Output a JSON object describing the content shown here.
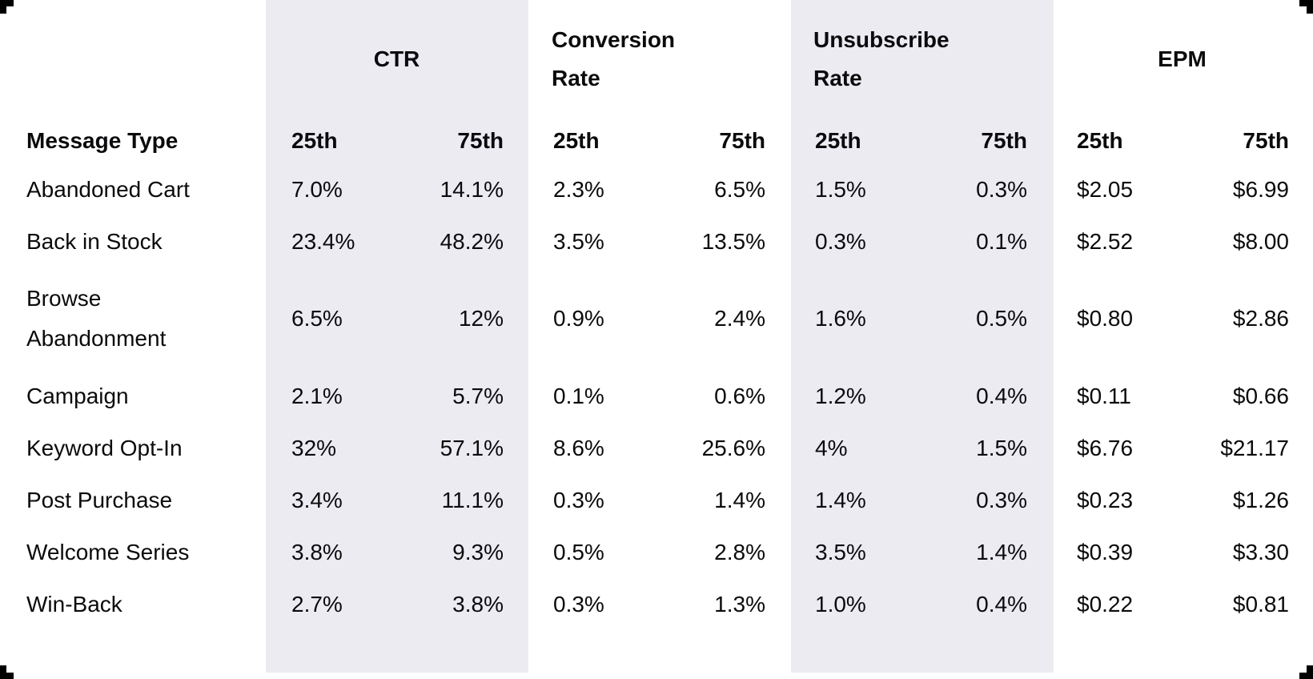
{
  "colors": {
    "background": "#FFFFFF",
    "band": "#ECEBF2",
    "text": "#0B0B0D",
    "corner_marks": "#000000"
  },
  "chart_data": {
    "type": "table",
    "row_header_label": "Message Type",
    "percentile_labels": {
      "low": "25th",
      "high": "75th"
    },
    "column_groups": [
      {
        "label": "CTR"
      },
      {
        "label": "Conversion Rate"
      },
      {
        "label": "Unsubscribe Rate"
      },
      {
        "label": "EPM"
      }
    ],
    "columns": [
      "Message Type",
      "CTR 25th",
      "CTR 75th",
      "Conversion Rate 25th",
      "Conversion Rate 75th",
      "Unsubscribe Rate 25th",
      "Unsubscribe Rate 75th",
      "EPM 25th",
      "EPM 75th"
    ],
    "rows": [
      {
        "label": "Abandoned Cart",
        "values": [
          "7.0%",
          "14.1%",
          "2.3%",
          "6.5%",
          "1.5%",
          "0.3%",
          "$2.05",
          "$6.99"
        ]
      },
      {
        "label": "Back in Stock",
        "values": [
          "23.4%",
          "48.2%",
          "3.5%",
          "13.5%",
          "0.3%",
          "0.1%",
          "$2.52",
          "$8.00"
        ]
      },
      {
        "label": "Browse Abandonment",
        "values": [
          "6.5%",
          "12%",
          "0.9%",
          "2.4%",
          "1.6%",
          "0.5%",
          "$0.80",
          "$2.86"
        ]
      },
      {
        "label": "Campaign",
        "values": [
          "2.1%",
          "5.7%",
          "0.1%",
          "0.6%",
          "1.2%",
          "0.4%",
          "$0.11",
          "$0.66"
        ]
      },
      {
        "label": "Keyword Opt-In",
        "values": [
          "32%",
          "57.1%",
          "8.6%",
          "25.6%",
          "4%",
          "1.5%",
          "$6.76",
          "$21.17"
        ]
      },
      {
        "label": "Post Purchase",
        "values": [
          "3.4%",
          "11.1%",
          "0.3%",
          "1.4%",
          "1.4%",
          "0.3%",
          "$0.23",
          "$1.26"
        ]
      },
      {
        "label": "Welcome Series",
        "values": [
          "3.8%",
          "9.3%",
          "0.5%",
          "2.8%",
          "3.5%",
          "1.4%",
          "$0.39",
          "$3.30"
        ]
      },
      {
        "label": "Win-Back",
        "values": [
          "2.7%",
          "3.8%",
          "0.3%",
          "1.3%",
          "1.0%",
          "0.4%",
          "$0.22",
          "$0.81"
        ]
      }
    ]
  }
}
